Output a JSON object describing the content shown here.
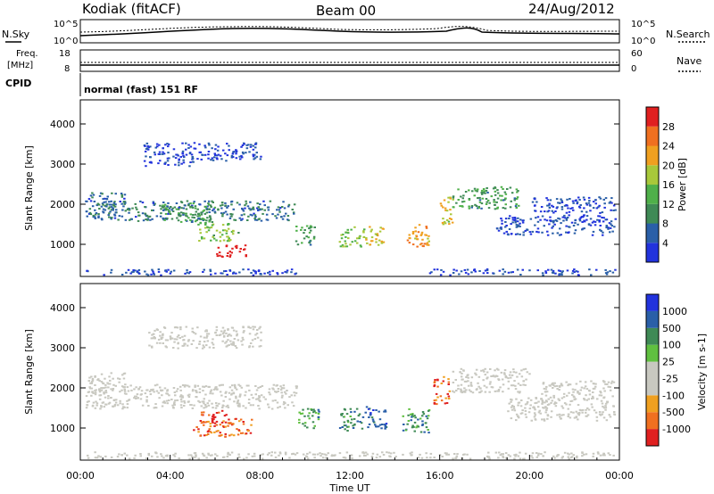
{
  "header": {
    "station": "Kodiak (fitACF)",
    "beam": "Beam 00",
    "date": "24/Aug/2012"
  },
  "params": {
    "nsky_label": "N.Sky",
    "nsearch_label": "N.Search",
    "noise_ticks": [
      "10^5",
      "10^0"
    ],
    "freq_label_1": "Freq.",
    "freq_label_2": "[MHz]",
    "freq_ticks": [
      "18",
      "8"
    ],
    "nave_label": "Nave",
    "nave_ticks": [
      "60",
      "0"
    ],
    "cpid_label": "CPID",
    "cpid_value": "normal (fast) 151 RF"
  },
  "colors": {
    "power": [
      "#2233dd",
      "#2a5fa8",
      "#3f8a56",
      "#4fb04a",
      "#a8c83a",
      "#f0a020",
      "#f07020",
      "#e02020"
    ],
    "velocity": [
      "#e02020",
      "#f07020",
      "#f0a020",
      "#c8c8c0",
      "#c8c8c0",
      "#60c040",
      "#3f8a56",
      "#2a5fa8",
      "#2233dd"
    ],
    "ground": "#c8c8c0"
  },
  "chart_data": [
    {
      "type": "heatmap",
      "panel": "power",
      "xlabel": "",
      "ylabel": "Slant Range [km]",
      "ylim": [
        200,
        4600
      ],
      "y_ticks": [
        1000,
        2000,
        3000,
        4000
      ],
      "colorbar_label": "Power [dB]",
      "colorbar_ticks": [
        "4",
        "8",
        "12",
        "16",
        "20",
        "24",
        "28"
      ],
      "features": [
        {
          "t0": 0.2,
          "t1": 9.6,
          "r0": 250,
          "r1": 400,
          "level": 1
        },
        {
          "t0": 2.8,
          "t1": 5.0,
          "r0": 2950,
          "r1": 3550,
          "level": 1
        },
        {
          "t0": 5.0,
          "t1": 8.0,
          "r0": 3100,
          "r1": 3550,
          "level": 1
        },
        {
          "t0": 0.2,
          "t1": 9.5,
          "r0": 1600,
          "r1": 2100,
          "level": 2
        },
        {
          "t0": 0.3,
          "t1": 2.0,
          "r0": 1900,
          "r1": 2300,
          "level": 2
        },
        {
          "t0": 3.5,
          "t1": 6.0,
          "r0": 1550,
          "r1": 2050,
          "level": 3
        },
        {
          "t0": 5.2,
          "t1": 7.0,
          "r0": 1100,
          "r1": 1550,
          "level": 4
        },
        {
          "t0": 6.0,
          "t1": 7.4,
          "r0": 700,
          "r1": 1000,
          "level": 8
        },
        {
          "t0": 9.5,
          "t1": 10.4,
          "r0": 1000,
          "r1": 1500,
          "level": 3
        },
        {
          "t0": 11.5,
          "t1": 12.6,
          "r0": 950,
          "r1": 1450,
          "level": 4
        },
        {
          "t0": 12.6,
          "t1": 13.5,
          "r0": 1000,
          "r1": 1500,
          "level": 5
        },
        {
          "t0": 14.5,
          "t1": 15.5,
          "r0": 950,
          "r1": 1550,
          "level": 6
        },
        {
          "t0": 16.0,
          "t1": 16.6,
          "r0": 1500,
          "r1": 2200,
          "level": 5
        },
        {
          "t0": 16.5,
          "t1": 19.5,
          "r0": 1900,
          "r1": 2450,
          "level": 3
        },
        {
          "t0": 18.5,
          "t1": 23.8,
          "r0": 1250,
          "r1": 1750,
          "level": 1
        },
        {
          "t0": 20.0,
          "t1": 23.8,
          "r0": 1800,
          "r1": 2200,
          "level": 1
        },
        {
          "t0": 15.5,
          "t1": 23.8,
          "r0": 250,
          "r1": 400,
          "level": 1
        }
      ]
    },
    {
      "type": "heatmap",
      "panel": "velocity",
      "xlabel": "Time UT",
      "ylabel": "Slant Range [km]",
      "ylim": [
        200,
        4600
      ],
      "y_ticks": [
        1000,
        2000,
        3000,
        4000
      ],
      "x_ticks": [
        "00:00",
        "04:00",
        "08:00",
        "12:00",
        "16:00",
        "20:00",
        "00:00"
      ],
      "xlim_hours": [
        0,
        24
      ],
      "colorbar_label": "Velocity [m s-1]",
      "colorbar_ticks": [
        "1000",
        "500",
        "100",
        "25",
        "-25",
        "-100",
        "-500",
        "-1000"
      ],
      "features": [
        {
          "t0": 0.2,
          "t1": 9.6,
          "r0": 1500,
          "r1": 2100,
          "level": "ground"
        },
        {
          "t0": 0.3,
          "t1": 2.0,
          "r0": 1900,
          "r1": 2400,
          "level": "ground"
        },
        {
          "t0": 3.0,
          "t1": 8.0,
          "r0": 3000,
          "r1": 3550,
          "level": "ground"
        },
        {
          "t0": 5.0,
          "t1": 7.6,
          "r0": 800,
          "r1": 1250,
          "level": 1
        },
        {
          "t0": 5.3,
          "t1": 6.5,
          "r0": 1150,
          "r1": 1450,
          "level": 0
        },
        {
          "t0": 9.6,
          "t1": 10.6,
          "r0": 1000,
          "r1": 1500,
          "level": 6
        },
        {
          "t0": 11.5,
          "t1": 12.6,
          "r0": 950,
          "r1": 1500,
          "level": 6
        },
        {
          "t0": 12.6,
          "t1": 13.6,
          "r0": 1000,
          "r1": 1550,
          "level": 7
        },
        {
          "t0": 14.3,
          "t1": 15.5,
          "r0": 900,
          "r1": 1500,
          "level": 6
        },
        {
          "t0": 15.7,
          "t1": 16.4,
          "r0": 1600,
          "r1": 2300,
          "level": 1
        },
        {
          "t0": 16.5,
          "t1": 20.0,
          "r0": 1900,
          "r1": 2500,
          "level": "ground"
        },
        {
          "t0": 19.0,
          "t1": 23.8,
          "r0": 1200,
          "r1": 1800,
          "level": "ground"
        },
        {
          "t0": 20.5,
          "t1": 23.8,
          "r0": 1800,
          "r1": 2200,
          "level": "ground"
        },
        {
          "t0": 0.2,
          "t1": 23.8,
          "r0": 250,
          "r1": 420,
          "level": "ground"
        }
      ]
    }
  ]
}
